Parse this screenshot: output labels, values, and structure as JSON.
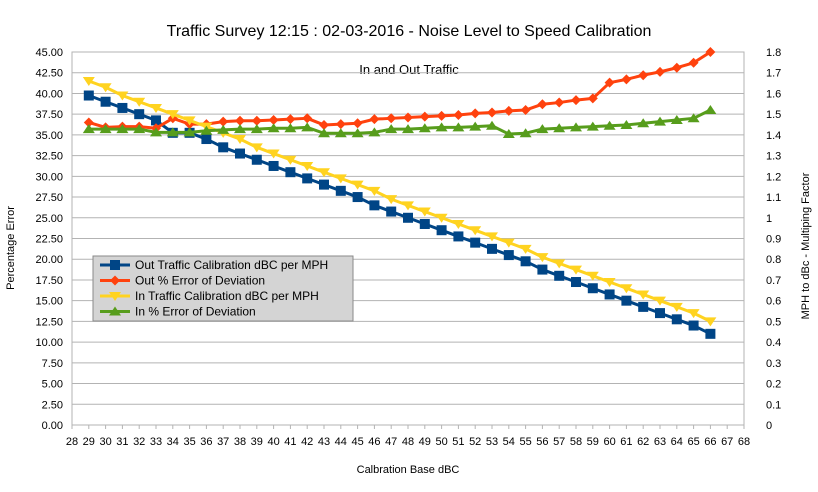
{
  "chart_data": {
    "type": "line",
    "title": "Traffic Survey 12:15 : 02-03-2016 - Noise Level to Speed Calibration",
    "subtitle": "In and Out  Traffic",
    "xlabel": "Calbration Base dBC",
    "ylabel_left": "Percentage Error",
    "ylabel_right": "MPH to dBc - Multiping Factor",
    "xlim": [
      28,
      68
    ],
    "ylim_left": [
      0,
      45
    ],
    "ylim_right": [
      0,
      1.8
    ],
    "x_ticks": [
      28,
      29,
      30,
      31,
      32,
      33,
      34,
      35,
      36,
      37,
      38,
      39,
      40,
      41,
      42,
      43,
      44,
      45,
      46,
      47,
      48,
      49,
      50,
      51,
      52,
      53,
      54,
      55,
      56,
      57,
      58,
      59,
      60,
      61,
      62,
      63,
      64,
      65,
      66,
      67,
      68
    ],
    "y_ticks_left": [
      "0.00",
      "2.50",
      "5.00",
      "7.50",
      "10.00",
      "12.50",
      "15.00",
      "17.50",
      "20.00",
      "22.50",
      "25.00",
      "27.50",
      "30.00",
      "32.50",
      "35.00",
      "37.50",
      "40.00",
      "42.50",
      "45.00"
    ],
    "y_ticks_right": [
      "0",
      "0.1",
      "0.2",
      "0.3",
      "0.4",
      "0.5",
      "0.6",
      "0.7",
      "0.8",
      "0.9",
      "1",
      "1.1",
      "1.2",
      "1.3",
      "1.4",
      "1.5",
      "1.6",
      "1.7",
      "1.8"
    ],
    "grid": true,
    "legend_position": "bottom-left",
    "x": [
      29,
      30,
      31,
      32,
      33,
      34,
      35,
      36,
      37,
      38,
      39,
      40,
      41,
      42,
      43,
      44,
      45,
      46,
      47,
      48,
      49,
      50,
      51,
      52,
      53,
      54,
      55,
      56,
      57,
      58,
      59,
      60,
      61,
      62,
      63,
      64,
      65,
      66
    ],
    "series": [
      {
        "name": "Out Traffic Calibration dBC per MPH",
        "axis": "right",
        "color": "#004586",
        "marker": "square",
        "values": [
          1.59,
          1.56,
          1.53,
          1.5,
          1.47,
          1.41,
          1.41,
          1.38,
          1.34,
          1.31,
          1.28,
          1.25,
          1.22,
          1.19,
          1.16,
          1.13,
          1.1,
          1.06,
          1.03,
          1.0,
          0.97,
          0.94,
          0.91,
          0.88,
          0.85,
          0.82,
          0.79,
          0.75,
          0.72,
          0.69,
          0.66,
          0.63,
          0.6,
          0.57,
          0.54,
          0.51,
          0.48,
          0.44
        ]
      },
      {
        "name": "Out % Error of  Deviation",
        "axis": "left",
        "color": "#ff420e",
        "marker": "diamond",
        "values": [
          36.5,
          35.9,
          36.0,
          36.0,
          35.8,
          37.0,
          36.3,
          36.3,
          36.6,
          36.7,
          36.7,
          36.8,
          36.9,
          37.0,
          36.2,
          36.3,
          36.4,
          36.9,
          37.0,
          37.1,
          37.2,
          37.3,
          37.4,
          37.6,
          37.7,
          37.9,
          38.0,
          38.7,
          38.9,
          39.2,
          39.4,
          41.3,
          41.7,
          42.2,
          42.6,
          43.1,
          43.7,
          45.0
        ]
      },
      {
        "name": "In Traffic Calibration dBC per MPH",
        "axis": "right",
        "color": "#ffd320",
        "marker": "triangle-down",
        "values": [
          1.66,
          1.63,
          1.59,
          1.56,
          1.53,
          1.5,
          1.47,
          1.44,
          1.41,
          1.38,
          1.34,
          1.31,
          1.28,
          1.25,
          1.22,
          1.19,
          1.16,
          1.13,
          1.09,
          1.06,
          1.03,
          1.0,
          0.97,
          0.94,
          0.91,
          0.88,
          0.85,
          0.81,
          0.78,
          0.75,
          0.72,
          0.69,
          0.66,
          0.63,
          0.6,
          0.57,
          0.54,
          0.5
        ]
      },
      {
        "name": "In % Error of  Deviation",
        "axis": "left",
        "color": "#579d1c",
        "marker": "triangle-up",
        "values": [
          35.7,
          35.7,
          35.7,
          35.7,
          35.3,
          35.3,
          35.3,
          35.5,
          35.6,
          35.7,
          35.7,
          35.8,
          35.8,
          35.9,
          35.2,
          35.2,
          35.2,
          35.3,
          35.7,
          35.7,
          35.8,
          35.9,
          35.9,
          36.0,
          36.1,
          35.1,
          35.2,
          35.7,
          35.8,
          35.9,
          36.0,
          36.1,
          36.2,
          36.4,
          36.6,
          36.8,
          37.0,
          38.0
        ]
      }
    ]
  }
}
